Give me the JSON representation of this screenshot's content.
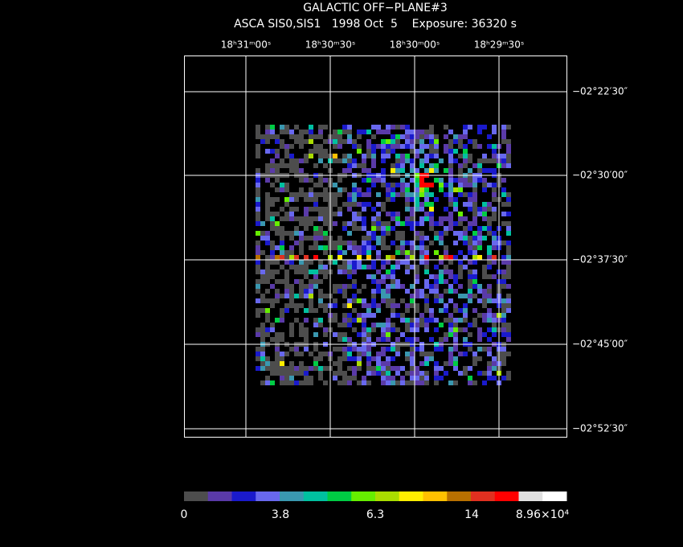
{
  "header": {
    "title": "GALACTIC OFF−PLANE#3",
    "subtitle": "ASCA SIS0,SIS1   1998 Oct  5    Exposure: 36320 s"
  },
  "ra_labels": [
    "18ʰ31ᵐ00ˢ",
    "18ʰ30ᵐ30ˢ",
    "18ʰ30ᵐ00ˢ",
    "18ʰ29ᵐ30ˢ"
  ],
  "dec_labels": [
    "−02°22′30″",
    "−02°30′00″",
    "−02°37′30″",
    "−02°45′00″",
    "−02°52′30″"
  ],
  "colorbar": {
    "colors": [
      "#4d4d4d",
      "#5a3aa8",
      "#1a1acc",
      "#6868ee",
      "#3a98b0",
      "#00c0a0",
      "#00cc44",
      "#66ee00",
      "#aadd00",
      "#ffee00",
      "#ffc000",
      "#b87000",
      "#e03020",
      "#ff0000",
      "#e0e0e0",
      "#ffffff"
    ],
    "labels": [
      "0",
      "3.8",
      "6.3",
      "14",
      "8.96×10⁴"
    ]
  }
}
